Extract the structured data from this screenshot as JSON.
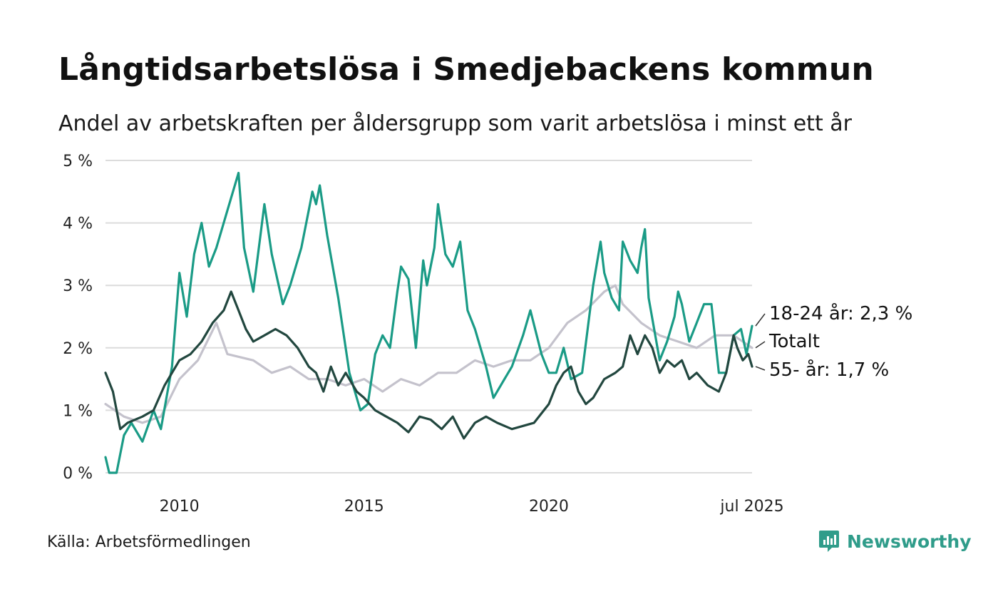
{
  "header": {
    "title": "Långtidsarbetslösa i Smedjebackens kommun",
    "subtitle": "Andel av arbetskraften per åldersgrupp som varit arbetslösa i minst ett år"
  },
  "footer": {
    "source": "Källa: Arbetsförmedlingen",
    "brand": "Newsworthy",
    "brand_icon": "newsworthy-logo-icon",
    "brand_color": "#2f9c8a"
  },
  "chart_data": {
    "type": "line",
    "y_axis": {
      "ylim": [
        0,
        5
      ],
      "ticks": [
        0,
        1,
        2,
        3,
        4,
        5
      ],
      "tick_labels": [
        "0 %",
        "1 %",
        "2 %",
        "3 %",
        "4 %",
        "5 %"
      ]
    },
    "x_axis": {
      "xlim": [
        2008.0,
        2025.5
      ],
      "ticks": [
        2010,
        2015,
        2020,
        2025.5
      ],
      "tick_labels": [
        "2010",
        "2015",
        "2020",
        "jul 2025"
      ]
    },
    "grid": true,
    "legend": "end-of-line labels",
    "series": [
      {
        "name": "Totalt",
        "end_label": "Totalt",
        "color": "#c4c2cc",
        "points": [
          [
            2008.0,
            1.1
          ],
          [
            2008.5,
            0.9
          ],
          [
            2009.0,
            0.8
          ],
          [
            2009.5,
            0.9
          ],
          [
            2010.0,
            1.5
          ],
          [
            2010.5,
            1.8
          ],
          [
            2011.0,
            2.4
          ],
          [
            2011.3,
            1.9
          ],
          [
            2012.0,
            1.8
          ],
          [
            2012.5,
            1.6
          ],
          [
            2013.0,
            1.7
          ],
          [
            2013.5,
            1.5
          ],
          [
            2014.0,
            1.5
          ],
          [
            2014.5,
            1.4
          ],
          [
            2015.0,
            1.5
          ],
          [
            2015.5,
            1.3
          ],
          [
            2016.0,
            1.5
          ],
          [
            2016.5,
            1.4
          ],
          [
            2017.0,
            1.6
          ],
          [
            2017.5,
            1.6
          ],
          [
            2018.0,
            1.8
          ],
          [
            2018.5,
            1.7
          ],
          [
            2019.0,
            1.8
          ],
          [
            2019.5,
            1.8
          ],
          [
            2020.0,
            2.0
          ],
          [
            2020.5,
            2.4
          ],
          [
            2021.0,
            2.6
          ],
          [
            2021.5,
            2.9
          ],
          [
            2021.8,
            3.0
          ],
          [
            2022.0,
            2.7
          ],
          [
            2022.5,
            2.4
          ],
          [
            2023.0,
            2.2
          ],
          [
            2023.5,
            2.1
          ],
          [
            2024.0,
            2.0
          ],
          [
            2024.5,
            2.2
          ],
          [
            2025.0,
            2.2
          ],
          [
            2025.5,
            2.0
          ]
        ]
      },
      {
        "name": "18-24 år",
        "end_label": "18-24 år: 2,3 %",
        "color": "#1a9b86",
        "points": [
          [
            2008.0,
            0.25
          ],
          [
            2008.1,
            0.0
          ],
          [
            2008.3,
            0.0
          ],
          [
            2008.5,
            0.6
          ],
          [
            2008.7,
            0.8
          ],
          [
            2009.0,
            0.5
          ],
          [
            2009.3,
            1.0
          ],
          [
            2009.5,
            0.7
          ],
          [
            2009.8,
            1.7
          ],
          [
            2010.0,
            3.2
          ],
          [
            2010.2,
            2.5
          ],
          [
            2010.4,
            3.5
          ],
          [
            2010.6,
            4.0
          ],
          [
            2010.8,
            3.3
          ],
          [
            2011.0,
            3.6
          ],
          [
            2011.3,
            4.2
          ],
          [
            2011.5,
            4.6
          ],
          [
            2011.6,
            4.8
          ],
          [
            2011.75,
            3.6
          ],
          [
            2012.0,
            2.9
          ],
          [
            2012.3,
            4.3
          ],
          [
            2012.5,
            3.5
          ],
          [
            2012.8,
            2.7
          ],
          [
            2013.0,
            3.0
          ],
          [
            2013.3,
            3.6
          ],
          [
            2013.5,
            4.2
          ],
          [
            2013.6,
            4.5
          ],
          [
            2013.7,
            4.3
          ],
          [
            2013.8,
            4.6
          ],
          [
            2014.0,
            3.8
          ],
          [
            2014.3,
            2.8
          ],
          [
            2014.6,
            1.6
          ],
          [
            2014.9,
            1.0
          ],
          [
            2015.1,
            1.1
          ],
          [
            2015.3,
            1.9
          ],
          [
            2015.5,
            2.2
          ],
          [
            2015.7,
            2.0
          ],
          [
            2015.9,
            2.9
          ],
          [
            2016.0,
            3.3
          ],
          [
            2016.2,
            3.1
          ],
          [
            2016.4,
            2.0
          ],
          [
            2016.6,
            3.4
          ],
          [
            2016.7,
            3.0
          ],
          [
            2016.9,
            3.6
          ],
          [
            2017.0,
            4.3
          ],
          [
            2017.2,
            3.5
          ],
          [
            2017.4,
            3.3
          ],
          [
            2017.6,
            3.7
          ],
          [
            2017.8,
            2.6
          ],
          [
            2018.0,
            2.3
          ],
          [
            2018.3,
            1.7
          ],
          [
            2018.5,
            1.2
          ],
          [
            2018.8,
            1.5
          ],
          [
            2019.0,
            1.7
          ],
          [
            2019.3,
            2.2
          ],
          [
            2019.5,
            2.6
          ],
          [
            2019.8,
            1.9
          ],
          [
            2020.0,
            1.6
          ],
          [
            2020.2,
            1.6
          ],
          [
            2020.4,
            2.0
          ],
          [
            2020.6,
            1.5
          ],
          [
            2020.9,
            1.6
          ],
          [
            2021.2,
            3.0
          ],
          [
            2021.4,
            3.7
          ],
          [
            2021.5,
            3.2
          ],
          [
            2021.7,
            2.8
          ],
          [
            2021.9,
            2.6
          ],
          [
            2022.0,
            3.7
          ],
          [
            2022.2,
            3.4
          ],
          [
            2022.4,
            3.2
          ],
          [
            2022.5,
            3.6
          ],
          [
            2022.6,
            3.9
          ],
          [
            2022.7,
            2.8
          ],
          [
            2023.0,
            1.8
          ],
          [
            2023.2,
            2.1
          ],
          [
            2023.4,
            2.5
          ],
          [
            2023.5,
            2.9
          ],
          [
            2023.6,
            2.7
          ],
          [
            2023.8,
            2.1
          ],
          [
            2024.0,
            2.4
          ],
          [
            2024.2,
            2.7
          ],
          [
            2024.4,
            2.7
          ],
          [
            2024.6,
            1.6
          ],
          [
            2024.8,
            1.6
          ],
          [
            2025.0,
            2.2
          ],
          [
            2025.2,
            2.3
          ],
          [
            2025.35,
            1.9
          ],
          [
            2025.5,
            2.35
          ]
        ]
      },
      {
        "name": "55- år",
        "end_label": "55- år: 1,7 %",
        "color": "#22473f",
        "points": [
          [
            2008.0,
            1.6
          ],
          [
            2008.2,
            1.3
          ],
          [
            2008.4,
            0.7
          ],
          [
            2008.6,
            0.8
          ],
          [
            2009.0,
            0.9
          ],
          [
            2009.3,
            1.0
          ],
          [
            2009.6,
            1.4
          ],
          [
            2010.0,
            1.8
          ],
          [
            2010.3,
            1.9
          ],
          [
            2010.6,
            2.1
          ],
          [
            2010.9,
            2.4
          ],
          [
            2011.2,
            2.6
          ],
          [
            2011.4,
            2.9
          ],
          [
            2011.6,
            2.6
          ],
          [
            2011.8,
            2.3
          ],
          [
            2012.0,
            2.1
          ],
          [
            2012.3,
            2.2
          ],
          [
            2012.6,
            2.3
          ],
          [
            2012.9,
            2.2
          ],
          [
            2013.2,
            2.0
          ],
          [
            2013.5,
            1.7
          ],
          [
            2013.7,
            1.6
          ],
          [
            2013.9,
            1.3
          ],
          [
            2014.1,
            1.7
          ],
          [
            2014.3,
            1.4
          ],
          [
            2014.5,
            1.6
          ],
          [
            2014.8,
            1.3
          ],
          [
            2015.0,
            1.2
          ],
          [
            2015.3,
            1.0
          ],
          [
            2015.6,
            0.9
          ],
          [
            2015.9,
            0.8
          ],
          [
            2016.2,
            0.65
          ],
          [
            2016.5,
            0.9
          ],
          [
            2016.8,
            0.85
          ],
          [
            2017.1,
            0.7
          ],
          [
            2017.4,
            0.9
          ],
          [
            2017.7,
            0.55
          ],
          [
            2018.0,
            0.8
          ],
          [
            2018.3,
            0.9
          ],
          [
            2018.6,
            0.8
          ],
          [
            2019.0,
            0.7
          ],
          [
            2019.3,
            0.75
          ],
          [
            2019.6,
            0.8
          ],
          [
            2020.0,
            1.1
          ],
          [
            2020.2,
            1.4
          ],
          [
            2020.4,
            1.6
          ],
          [
            2020.6,
            1.7
          ],
          [
            2020.8,
            1.3
          ],
          [
            2021.0,
            1.1
          ],
          [
            2021.2,
            1.2
          ],
          [
            2021.5,
            1.5
          ],
          [
            2021.8,
            1.6
          ],
          [
            2022.0,
            1.7
          ],
          [
            2022.2,
            2.2
          ],
          [
            2022.4,
            1.9
          ],
          [
            2022.6,
            2.2
          ],
          [
            2022.8,
            2.0
          ],
          [
            2023.0,
            1.6
          ],
          [
            2023.2,
            1.8
          ],
          [
            2023.4,
            1.7
          ],
          [
            2023.6,
            1.8
          ],
          [
            2023.8,
            1.5
          ],
          [
            2024.0,
            1.6
          ],
          [
            2024.3,
            1.4
          ],
          [
            2024.6,
            1.3
          ],
          [
            2024.8,
            1.6
          ],
          [
            2025.0,
            2.2
          ],
          [
            2025.1,
            2.0
          ],
          [
            2025.25,
            1.8
          ],
          [
            2025.4,
            1.9
          ],
          [
            2025.5,
            1.7
          ]
        ]
      }
    ]
  }
}
